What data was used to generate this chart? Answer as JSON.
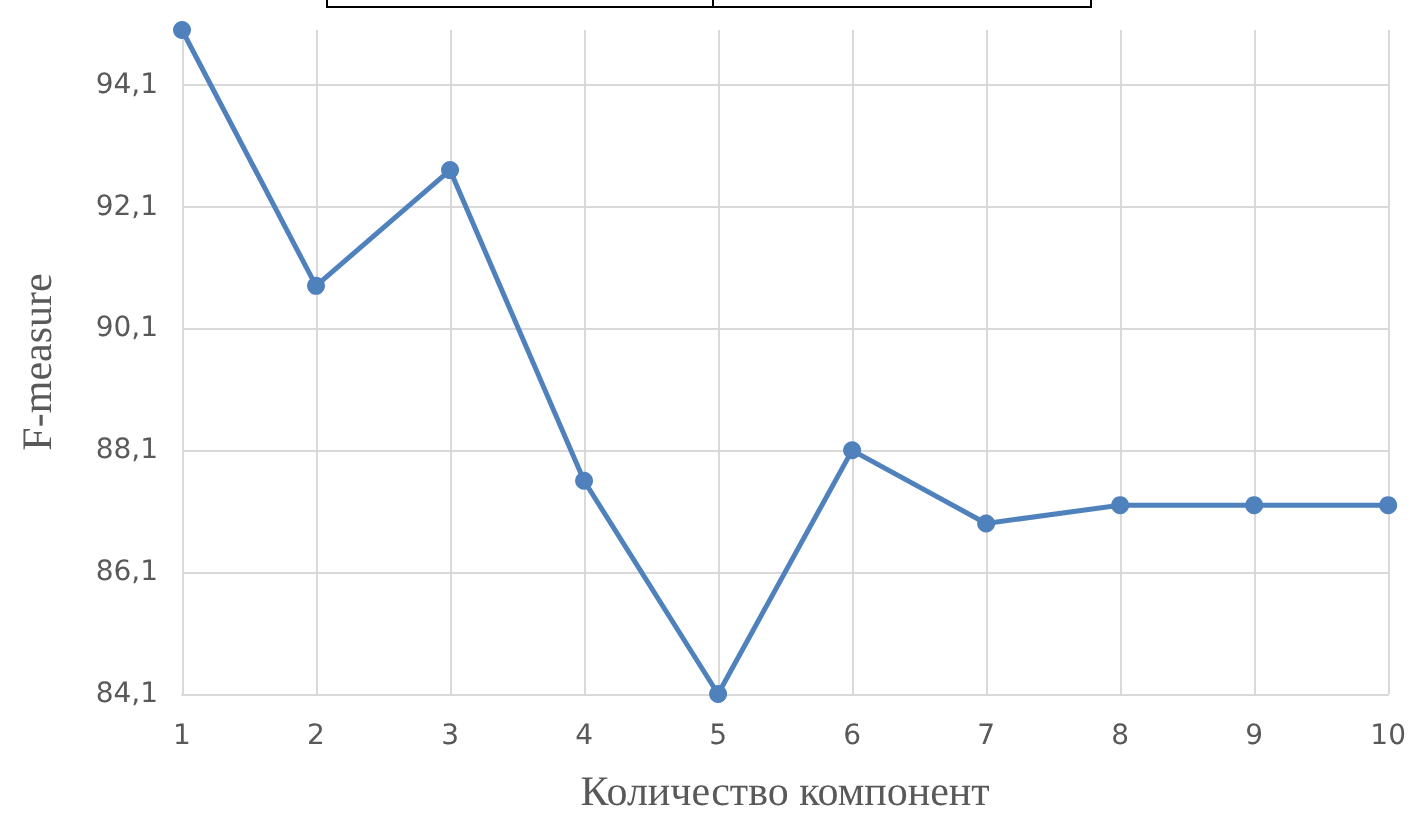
{
  "chart_data": {
    "type": "line",
    "xlabel": "Количество компонент",
    "ylabel": "F-measure",
    "categories": [
      "1",
      "2",
      "3",
      "4",
      "5",
      "6",
      "7",
      "8",
      "9",
      "10"
    ],
    "series": [
      {
        "color": "#4f81bd",
        "values": [
          95.0,
          90.8,
          92.7,
          87.6,
          84.1,
          88.1,
          86.9,
          87.2,
          87.2,
          87.2
        ]
      }
    ],
    "ylim": [
      84.1,
      95.0
    ],
    "yticks": [
      {
        "value": 84.1,
        "label": "84,1"
      },
      {
        "value": 86.1,
        "label": "86,1"
      },
      {
        "value": 88.1,
        "label": "88,1"
      },
      {
        "value": 90.1,
        "label": "90,1"
      },
      {
        "value": 92.1,
        "label": "92,1"
      },
      {
        "value": 94.1,
        "label": "94,1"
      }
    ],
    "grid": true,
    "marker": "circle",
    "line_style": "solid"
  }
}
